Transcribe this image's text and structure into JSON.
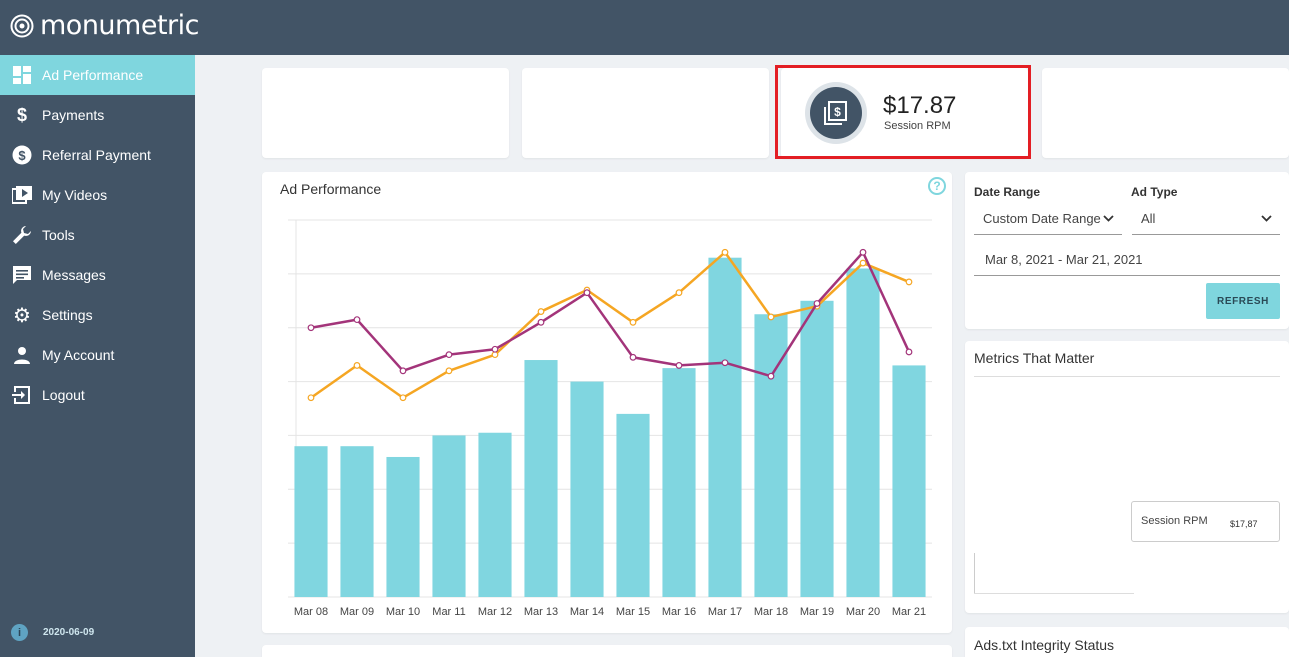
{
  "app": {
    "brand": "monumetric",
    "version": "2020-06-09"
  },
  "colors": {
    "header_bg": "#425466",
    "accent": "#7fd6de",
    "highlight_border": "#e31e24",
    "line_orange": "#f5a623",
    "line_purple": "#a3347a"
  },
  "sidebar": {
    "items": [
      {
        "label": "Ad Performance",
        "icon": "dashboard-icon",
        "active": true
      },
      {
        "label": "Payments",
        "icon": "dollar-icon",
        "active": false
      },
      {
        "label": "Referral Payment",
        "icon": "dollar-circle-icon",
        "active": false
      },
      {
        "label": "My Videos",
        "icon": "video-icon",
        "active": false
      },
      {
        "label": "Tools",
        "icon": "wrench-icon",
        "active": false
      },
      {
        "label": "Messages",
        "icon": "message-icon",
        "active": false
      },
      {
        "label": "Settings",
        "icon": "gear-icon",
        "active": false
      },
      {
        "label": "My Account",
        "icon": "user-icon",
        "active": false
      },
      {
        "label": "Logout",
        "icon": "logout-icon",
        "active": false
      }
    ]
  },
  "stats": {
    "session_rpm": {
      "value": "$17.87",
      "label": "Session RPM",
      "icon": "money-stack-icon"
    }
  },
  "ad_performance": {
    "title": "Ad Performance",
    "help_icon": "question-icon",
    "help_symbol": "?"
  },
  "chart_data": {
    "type": "bar",
    "categories": [
      "Mar 08",
      "Mar 09",
      "Mar 10",
      "Mar 11",
      "Mar 12",
      "Mar 13",
      "Mar 14",
      "Mar 15",
      "Mar 16",
      "Mar 17",
      "Mar 18",
      "Mar 19",
      "Mar 20",
      "Mar 21"
    ],
    "bars": [
      28,
      28,
      26,
      30,
      30.5,
      44,
      40,
      34,
      42.5,
      63,
      52.5,
      55,
      61,
      43
    ],
    "line_orange": [
      37,
      43,
      37,
      42,
      45,
      53,
      57,
      51,
      56.5,
      64,
      52,
      54,
      62,
      58.5
    ],
    "line_purple": [
      50,
      51.5,
      42,
      45,
      46,
      51,
      56.5,
      44.5,
      43,
      43.5,
      41,
      54.5,
      64,
      45.5
    ],
    "ylim": [
      0,
      70
    ],
    "grid": true,
    "legend": "none",
    "title": "",
    "xlabel": "",
    "ylabel": ""
  },
  "filters": {
    "date_range_label": "Date Range",
    "date_range_value": "Custom Date Range",
    "ad_type_label": "Ad Type",
    "ad_type_value": "All",
    "date_value": "Mar 8, 2021 - Mar 21, 2021",
    "refresh_label": "REFRESH"
  },
  "metrics": {
    "title": "Metrics That Matter",
    "session_rpm_label": "Session RPM",
    "session_rpm_value": "$17,87"
  },
  "ads_txt": {
    "title": "Ads.txt Integrity Status"
  }
}
